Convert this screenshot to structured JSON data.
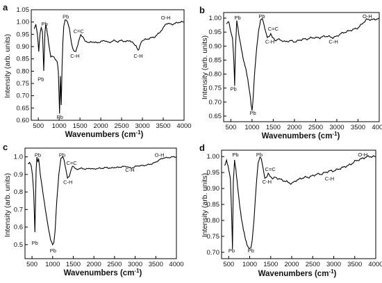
{
  "chart_data": [
    {
      "panel": "a",
      "type": "line",
      "xlabel": "Wavenumbers (cm⁻¹)",
      "ylabel": "Intensity (arb. units)",
      "xlim": [
        330,
        4000
      ],
      "ylim": [
        0.6,
        1.05
      ],
      "xticks": [
        500,
        1000,
        1500,
        2000,
        2500,
        3000,
        3500,
        4000
      ],
      "yticks": [
        0.6,
        0.65,
        0.7,
        0.75,
        0.8,
        0.85,
        0.9,
        0.95,
        1.0,
        1.05
      ],
      "series": [
        {
          "x": [
            400,
            440,
            480,
            510,
            540,
            570,
            600,
            630,
            660,
            680,
            700,
            730,
            760,
            800,
            850,
            900,
            950,
            980,
            1010,
            1030,
            1050,
            1070,
            1090,
            1110,
            1130,
            1150,
            1200,
            1250,
            1300,
            1350,
            1400,
            1450,
            1480,
            1520,
            1560,
            1600,
            1650,
            1700,
            1800,
            1900,
            2000,
            2100,
            2200,
            2300,
            2400,
            2500,
            2600,
            2700,
            2800,
            2850,
            2880,
            2900,
            2920,
            2950,
            3000,
            3100,
            3200,
            3300,
            3400,
            3500,
            3550,
            3600,
            3700,
            3800,
            3900,
            4000
          ],
          "values": [
            0.97,
            0.99,
            0.95,
            0.88,
            0.95,
            0.98,
            0.96,
            0.8,
            0.96,
            0.99,
            0.97,
            0.94,
            0.9,
            0.86,
            0.86,
            0.85,
            0.84,
            0.8,
            0.63,
            0.78,
            0.66,
            0.82,
            0.92,
            0.98,
            1.0,
            1.01,
            1.0,
            0.97,
            0.91,
            0.88,
            0.88,
            0.91,
            0.93,
            0.95,
            0.94,
            0.93,
            0.92,
            0.915,
            0.92,
            0.915,
            0.92,
            0.925,
            0.915,
            0.925,
            0.92,
            0.925,
            0.92,
            0.925,
            0.91,
            0.9,
            0.89,
            0.885,
            0.89,
            0.91,
            0.925,
            0.93,
            0.935,
            0.94,
            0.955,
            0.975,
            0.99,
            0.995,
            0.99,
            0.995,
            1.0,
            1.0
          ]
        }
      ],
      "annotations": [
        {
          "text": "Pb",
          "x": 650,
          "y": 0.985
        },
        {
          "text": "Pb",
          "x": 560,
          "y": 0.76
        },
        {
          "text": "Pb",
          "x": 1160,
          "y": 1.015
        },
        {
          "text": "Pb",
          "x": 1020,
          "y": 0.605
        },
        {
          "text": "C=C",
          "x": 1470,
          "y": 0.955
        },
        {
          "text": "C-H",
          "x": 1380,
          "y": 0.855
        },
        {
          "text": "C-H",
          "x": 2900,
          "y": 0.855
        },
        {
          "text": "O-H",
          "x": 3560,
          "y": 1.01
        }
      ]
    },
    {
      "panel": "b",
      "type": "line",
      "xlabel": "Wavenumbers (cm⁻¹)",
      "ylabel": "Intensity (arb. units)",
      "xlim": [
        330,
        4000
      ],
      "ylim": [
        0.63,
        1.02
      ],
      "xticks": [
        500,
        1000,
        1500,
        2000,
        2500,
        3000,
        3500,
        4000
      ],
      "yticks": [
        0.65,
        0.7,
        0.75,
        0.8,
        0.85,
        0.9,
        0.95,
        1.0
      ],
      "series": [
        {
          "x": [
            400,
            450,
            500,
            540,
            570,
            590,
            610,
            640,
            670,
            700,
            750,
            800,
            850,
            900,
            950,
            980,
            1000,
            1020,
            1050,
            1100,
            1150,
            1200,
            1240,
            1280,
            1320,
            1360,
            1400,
            1440,
            1480,
            1520,
            1560,
            1600,
            1700,
            1800,
            1900,
            2000,
            2100,
            2200,
            2300,
            2400,
            2500,
            2600,
            2700,
            2800,
            2900,
            3000,
            3100,
            3200,
            3300,
            3400,
            3500,
            3600,
            3700,
            3800,
            3900,
            4000
          ],
          "values": [
            0.98,
            0.99,
            0.95,
            0.93,
            0.85,
            0.76,
            0.9,
            0.99,
            0.96,
            0.93,
            0.89,
            0.85,
            0.82,
            0.78,
            0.73,
            0.69,
            0.67,
            0.7,
            0.78,
            0.88,
            0.95,
            0.99,
            1.0,
            0.98,
            0.95,
            0.93,
            0.935,
            0.945,
            0.93,
            0.925,
            0.92,
            0.925,
            0.92,
            0.915,
            0.92,
            0.915,
            0.92,
            0.925,
            0.925,
            0.93,
            0.93,
            0.93,
            0.935,
            0.935,
            0.93,
            0.935,
            0.945,
            0.95,
            0.955,
            0.96,
            0.965,
            0.98,
            0.995,
            0.995,
            0.995,
            1.0
          ]
        }
      ],
      "annotations": [
        {
          "text": "Pb",
          "x": 660,
          "y": 0.995
        },
        {
          "text": "Pb",
          "x": 560,
          "y": 0.74
        },
        {
          "text": "Pb",
          "x": 1230,
          "y": 1.0
        },
        {
          "text": "Pb",
          "x": 1020,
          "y": 0.655
        },
        {
          "text": "C=C",
          "x": 1500,
          "y": 0.955
        },
        {
          "text": "C-H",
          "x": 1420,
          "y": 0.91
        },
        {
          "text": "C-H",
          "x": 2920,
          "y": 0.91
        },
        {
          "text": "O-H",
          "x": 3720,
          "y": 1.0
        }
      ]
    },
    {
      "panel": "c",
      "type": "line",
      "xlabel": "Wavenumbers (cm⁻¹)",
      "ylabel": "Intensity (arb. units)",
      "xlim": [
        330,
        4000
      ],
      "ylim": [
        0.42,
        1.05
      ],
      "xticks": [
        500,
        1000,
        1500,
        2000,
        2500,
        3000,
        3500,
        4000
      ],
      "yticks": [
        0.5,
        0.6,
        0.7,
        0.8,
        0.9,
        1.0
      ],
      "series": [
        {
          "x": [
            400,
            440,
            480,
            510,
            540,
            570,
            600,
            620,
            640,
            660,
            680,
            700,
            750,
            800,
            850,
            900,
            950,
            1000,
            1030,
            1060,
            1100,
            1150,
            1200,
            1240,
            1280,
            1320,
            1360,
            1400,
            1440,
            1480,
            1520,
            1560,
            1600,
            1700,
            1800,
            1900,
            2000,
            2100,
            2200,
            2300,
            2400,
            2500,
            2600,
            2700,
            2800,
            2900,
            3000,
            3100,
            3200,
            3300,
            3400,
            3500,
            3600,
            3700,
            3800,
            3900,
            4000
          ],
          "values": [
            0.96,
            0.97,
            0.95,
            0.9,
            0.8,
            0.57,
            0.93,
            1.0,
            0.97,
            0.99,
            0.95,
            0.9,
            0.82,
            0.74,
            0.66,
            0.59,
            0.53,
            0.5,
            0.51,
            0.58,
            0.75,
            0.9,
            0.99,
            1.0,
            0.98,
            0.93,
            0.88,
            0.885,
            0.92,
            0.95,
            0.94,
            0.93,
            0.93,
            0.935,
            0.93,
            0.935,
            0.93,
            0.935,
            0.935,
            0.94,
            0.935,
            0.94,
            0.94,
            0.945,
            0.945,
            0.935,
            0.945,
            0.95,
            0.95,
            0.955,
            0.96,
            0.97,
            0.985,
            0.995,
            0.995,
            1.0,
            1.0
          ]
        }
      ],
      "annotations": [
        {
          "text": "Pb",
          "x": 640,
          "y": 1.0
        },
        {
          "text": "Pb",
          "x": 570,
          "y": 0.5
        },
        {
          "text": "Pb",
          "x": 1230,
          "y": 1.0
        },
        {
          "text": "Pb",
          "x": 1010,
          "y": 0.455
        },
        {
          "text": "C=C",
          "x": 1460,
          "y": 0.955
        },
        {
          "text": "C-H",
          "x": 1370,
          "y": 0.845
        },
        {
          "text": "C-H",
          "x": 2870,
          "y": 0.915
        },
        {
          "text": "O-H",
          "x": 3590,
          "y": 1.0
        }
      ]
    },
    {
      "panel": "d",
      "type": "line",
      "xlabel": "Wavenumbers (cm⁻¹)",
      "ylabel": "Intensity (arb. units)",
      "xlim": [
        330,
        4000
      ],
      "ylim": [
        0.68,
        1.02
      ],
      "xticks": [
        500,
        1000,
        1500,
        2000,
        2500,
        3000,
        3500,
        4000
      ],
      "yticks": [
        0.7,
        0.75,
        0.8,
        0.85,
        0.9,
        0.95,
        1.0
      ],
      "series": [
        {
          "x": [
            400,
            450,
            500,
            540,
            570,
            590,
            610,
            640,
            670,
            700,
            750,
            800,
            850,
            900,
            950,
            1000,
            1030,
            1060,
            1100,
            1150,
            1200,
            1240,
            1280,
            1320,
            1360,
            1400,
            1440,
            1480,
            1520,
            1560,
            1600,
            1700,
            1800,
            1900,
            2000,
            2100,
            2200,
            2300,
            2400,
            2500,
            2600,
            2700,
            2800,
            2900,
            3000,
            3100,
            3200,
            3300,
            3400,
            3500,
            3600,
            3700,
            3800,
            3900,
            4000
          ],
          "values": [
            0.97,
            0.99,
            0.96,
            0.93,
            0.82,
            0.71,
            0.92,
            0.99,
            0.96,
            0.92,
            0.86,
            0.81,
            0.77,
            0.74,
            0.72,
            0.71,
            0.715,
            0.74,
            0.8,
            0.9,
            0.98,
            1.0,
            0.99,
            0.96,
            0.935,
            0.935,
            0.945,
            0.94,
            0.935,
            0.93,
            0.935,
            0.93,
            0.925,
            0.92,
            0.915,
            0.925,
            0.93,
            0.935,
            0.935,
            0.94,
            0.945,
            0.945,
            0.95,
            0.955,
            0.955,
            0.96,
            0.965,
            0.97,
            0.975,
            0.985,
            0.99,
            0.995,
            1.0,
            1.0,
            1.0
          ]
        }
      ],
      "annotations": [
        {
          "text": "Pb",
          "x": 660,
          "y": 1.0
        },
        {
          "text": "Pb",
          "x": 570,
          "y": 0.7
        },
        {
          "text": "Pb",
          "x": 1230,
          "y": 1.0
        },
        {
          "text": "Pb",
          "x": 1030,
          "y": 0.7
        },
        {
          "text": "C=C",
          "x": 1490,
          "y": 0.955
        },
        {
          "text": "C-H",
          "x": 1410,
          "y": 0.915
        },
        {
          "text": "C-H",
          "x": 2900,
          "y": 0.925
        },
        {
          "text": "O-H",
          "x": 3690,
          "y": 1.0
        }
      ]
    }
  ],
  "panels": [
    {
      "letter": "a",
      "xlabel_text": "Wavenumbers (cm",
      "xlabel_sup": "-1",
      "xlabel_end": ")",
      "ylabel": "Intensity (arb. units)"
    },
    {
      "letter": "b",
      "xlabel_text": "Wavenumbers (cm",
      "xlabel_sup": "-1",
      "xlabel_end": ")",
      "ylabel": "Intensity (arb. units)"
    },
    {
      "letter": "c",
      "xlabel_text": "Wavenumbers (cm",
      "xlabel_sup": "-1",
      "xlabel_end": ")",
      "ylabel": "Intensity (arb. units)"
    },
    {
      "letter": "d",
      "xlabel_text": "Wavenumbers (cm",
      "xlabel_sup": "-1",
      "xlabel_end": ")",
      "ylabel": "Intensity (arb. units)"
    }
  ],
  "colors": {
    "line": "#000000",
    "background": "#ffffff",
    "axes": "#000000"
  }
}
